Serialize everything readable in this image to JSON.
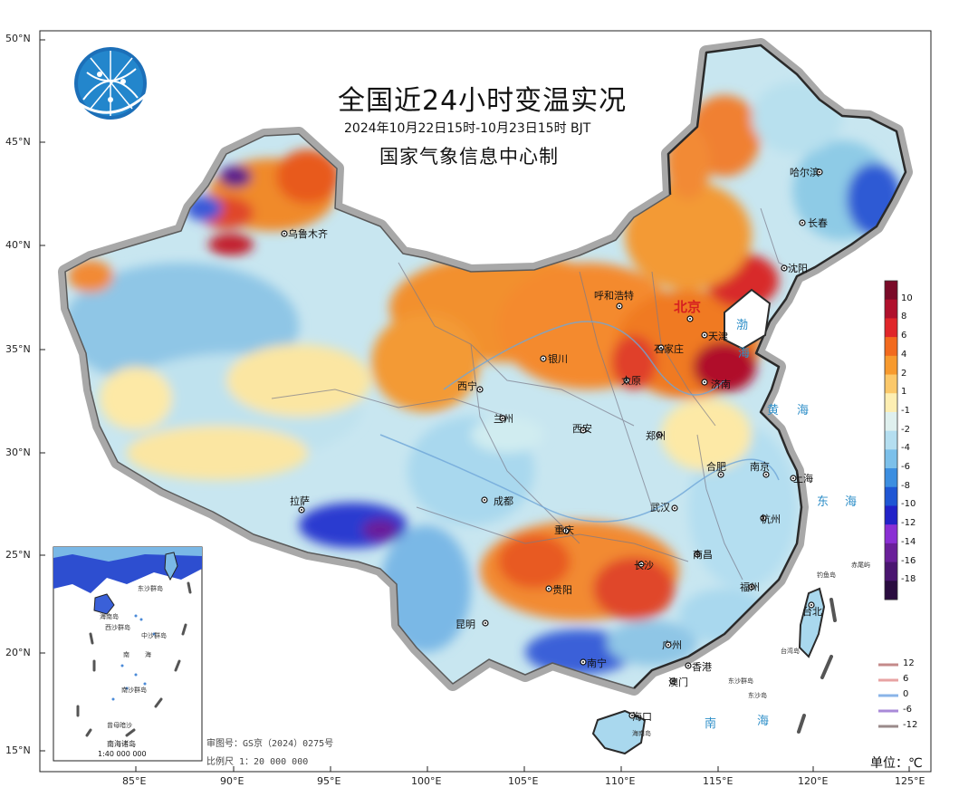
{
  "header": {
    "title": "全国近24小时变温实况",
    "subtitle": "2024年10月22日15时-10月23日15时 BJT",
    "agency": "国家气象信息中心制"
  },
  "axes": {
    "lat_labels": [
      "50°N",
      "45°N",
      "40°N",
      "35°N",
      "30°N",
      "25°N",
      "20°N",
      "15°N"
    ],
    "lon_labels": [
      "85°E",
      "90°E",
      "95°E",
      "100°E",
      "105°E",
      "110°E",
      "115°E",
      "120°E",
      "125°E"
    ]
  },
  "cities": {
    "wulumuqi": "乌鲁木齐",
    "haerbin": "哈尔滨",
    "changchun": "长春",
    "shenyang": "沈阳",
    "huhehaote": "呼和浩特",
    "beijing": "北京",
    "tianjin": "天津",
    "shijiazhuang": "石家庄",
    "taiyuan": "太原",
    "jinan": "济南",
    "yinchuan": "银川",
    "xining": "西宁",
    "lanzhou": "兰州",
    "xian": "西安",
    "zhengzhou": "郑州",
    "hefei": "合肥",
    "nanjing": "南京",
    "shanghai": "上海",
    "hangzhou": "杭州",
    "wuhan": "武汉",
    "chengdu": "成都",
    "lasa": "拉萨",
    "chongqing": "重庆",
    "changsha": "长沙",
    "nanchang": "南昌",
    "fuzhou": "福州",
    "guiyang": "贵阳",
    "kunming": "昆明",
    "nanning": "南宁",
    "guangzhou": "广州",
    "xianggang": "香港",
    "aomen": "澳门",
    "taibei": "台北",
    "haikou": "海口"
  },
  "places": {
    "bohai_1": "渤",
    "bohai_2": "海",
    "huanghai_1": "黄",
    "huanghai_2": "海",
    "donghai_1": "东",
    "donghai_2": "海",
    "nanhai_1": "南",
    "nanhai_2": "海",
    "diaoyudao": "钓鱼岛",
    "chiweiyu": "赤尾屿",
    "taiwandao": "台湾岛",
    "dongshaqundao": "东沙群岛",
    "dongshadao": "东沙岛",
    "hainandao": "海南岛"
  },
  "inset": {
    "title": "南海诸岛",
    "scale": "1:40 000 000",
    "labels": [
      "东沙群岛",
      "海南岛",
      "西沙群岛",
      "中沙群岛",
      "南",
      "海",
      "南沙群岛",
      "曾母暗沙"
    ]
  },
  "notes": {
    "approval": "审图号：GS京（2024）0275号",
    "scale": "比例尺 1：20 000 000"
  },
  "colorbar": {
    "unit": "单位：℃",
    "levels": [
      "10",
      "8",
      "6",
      "4",
      "2",
      "1",
      "-1",
      "-2",
      "-4",
      "-6",
      "-8",
      "-10",
      "-12",
      "-14",
      "-16",
      "-18"
    ],
    "colors": [
      "#7a0a28",
      "#b0102c",
      "#e0262a",
      "#f26a1e",
      "#f79a2e",
      "#fbc86a",
      "#fdeeb2",
      "#dff0ee",
      "#b4def0",
      "#7cc0ea",
      "#3c8ee0",
      "#1f56d4",
      "#2222c8",
      "#8a2fd4",
      "#6a1f9a",
      "#4a1570",
      "#2a0c40"
    ]
  },
  "legend": {
    "items": [
      {
        "label": "12",
        "color": "#c48a8a"
      },
      {
        "label": "6",
        "color": "#e8a3a3"
      },
      {
        "label": "0",
        "color": "#8ab4e8"
      },
      {
        "label": "-6",
        "color": "#a98ad8"
      },
      {
        "label": "-12",
        "color": "#9a8a8a"
      }
    ]
  },
  "colors": {
    "border": "#9a9a9a",
    "coast": "#222222",
    "warm": "#f39a34",
    "cool": "#9fd2ee",
    "sea": "#2f8fc8"
  }
}
